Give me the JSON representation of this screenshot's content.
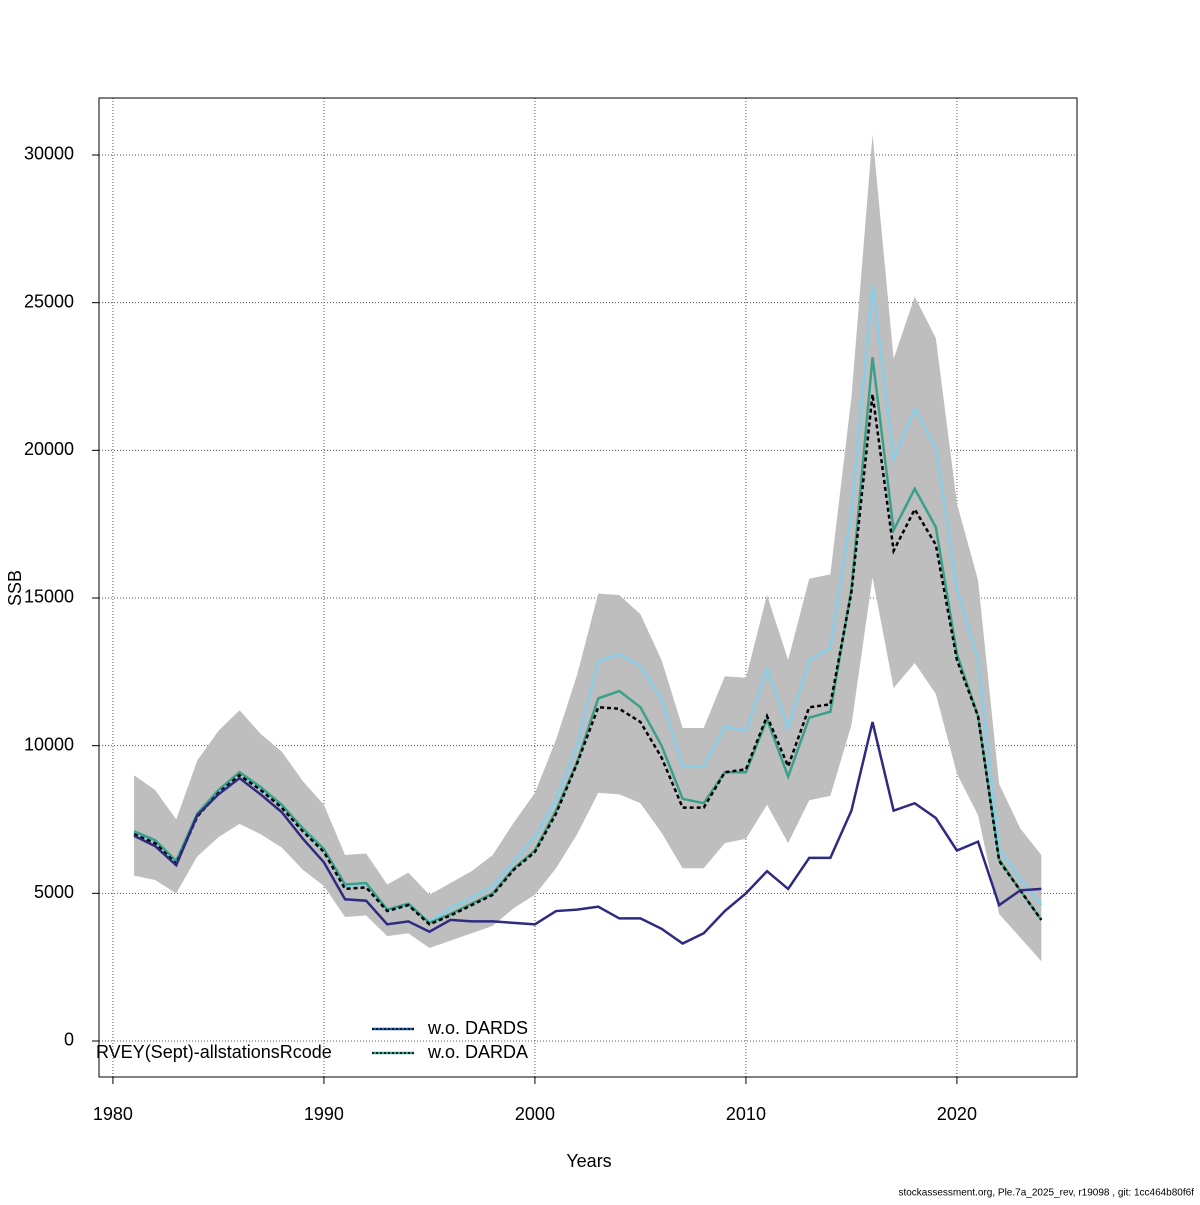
{
  "chart_data": {
    "type": "line",
    "xlabel": "Years",
    "ylabel": "SSB",
    "x": [
      1981,
      1982,
      1983,
      1984,
      1985,
      1986,
      1987,
      1988,
      1989,
      1990,
      1991,
      1992,
      1993,
      1994,
      1995,
      1996,
      1997,
      1998,
      1999,
      2000,
      2001,
      2002,
      2003,
      2004,
      2005,
      2006,
      2007,
      2008,
      2009,
      2010,
      2011,
      2012,
      2013,
      2014,
      2015,
      2016,
      2017,
      2018,
      2019,
      2020,
      2021,
      2022,
      2023,
      2024
    ],
    "band": {
      "color": "#bebebe",
      "upper": [
        9000,
        8500,
        7500,
        9500,
        10500,
        11200,
        10400,
        9800,
        8800,
        8000,
        6300,
        6350,
        5300,
        5700,
        4950,
        5350,
        5750,
        6300,
        7400,
        8400,
        10200,
        12400,
        15150,
        15100,
        14450,
        12900,
        10600,
        10600,
        12350,
        12300,
        15100,
        12900,
        15650,
        15800,
        21800,
        30700,
        23100,
        25200,
        23800,
        18200,
        15600,
        8700,
        7200,
        6300
      ],
      "lower": [
        5600,
        5450,
        5000,
        6250,
        6900,
        7350,
        7000,
        6550,
        5800,
        5250,
        4200,
        4250,
        3550,
        3650,
        3150,
        3400,
        3650,
        3900,
        4500,
        4950,
        5850,
        7000,
        8400,
        8350,
        8050,
        7050,
        5850,
        5850,
        6700,
        6850,
        8000,
        6700,
        8150,
        8300,
        10700,
        15700,
        11950,
        12800,
        11750,
        9050,
        7650,
        4300,
        3500,
        2700
      ]
    },
    "series": [
      {
        "name": "w.o. DARDS",
        "color": "#87ceeb",
        "legend_color": "#1f5aa6",
        "values": [
          7050,
          6750,
          6050,
          7650,
          8450,
          9050,
          8550,
          7950,
          7150,
          6450,
          5250,
          5300,
          4400,
          4600,
          4050,
          4500,
          4850,
          5250,
          6100,
          6900,
          8200,
          10000,
          12850,
          13100,
          12700,
          11600,
          9300,
          9300,
          10650,
          10500,
          12600,
          10600,
          12900,
          13300,
          17900,
          25600,
          19700,
          21400,
          20100,
          15300,
          12900,
          6500,
          5500,
          4600
        ]
      },
      {
        "name": "w.o. DARDA",
        "color": "#3aa08a",
        "legend_color": "#3aa08a",
        "values": [
          7100,
          6800,
          6100,
          7700,
          8500,
          9100,
          8600,
          8000,
          7200,
          6500,
          5300,
          5350,
          4450,
          4650,
          4000,
          4300,
          4650,
          5000,
          5850,
          6450,
          7800,
          9450,
          11600,
          11850,
          11300,
          10000,
          8200,
          8050,
          9100,
          9100,
          10900,
          8950,
          10950,
          11150,
          15300,
          23150,
          17300,
          18700,
          17400,
          13100,
          11000,
          6150,
          5100,
          4100
        ]
      },
      {
        "color": "#000000",
        "dashed": true,
        "values": [
          7000,
          6700,
          6000,
          7600,
          8400,
          9000,
          8500,
          7900,
          7100,
          6400,
          5150,
          5200,
          4400,
          4600,
          3950,
          4250,
          4600,
          4950,
          5800,
          6400,
          7700,
          9400,
          11300,
          11250,
          10800,
          9600,
          7900,
          7900,
          9100,
          9200,
          11000,
          9300,
          11300,
          11400,
          15200,
          21900,
          16600,
          18000,
          16800,
          12900,
          11000,
          6100,
          5100,
          4100
        ]
      },
      {
        "color": "#2e2a80",
        "values": [
          6950,
          6600,
          5950,
          7650,
          8350,
          8900,
          8350,
          7750,
          6850,
          6050,
          4800,
          4750,
          3950,
          4050,
          3700,
          4100,
          4050,
          4050,
          4000,
          3950,
          4400,
          4450,
          4550,
          4150,
          4150,
          3800,
          3300,
          3650,
          4400,
          5000,
          5750,
          5150,
          6200,
          6200,
          7800,
          10800,
          7800,
          8050,
          7550,
          6450,
          6750,
          4600,
          5100,
          5150
        ]
      }
    ],
    "legend_title": "RVEY(Sept)-allstationsRcode",
    "xlim": [
      1979.34,
      2025.69
    ],
    "xticks": [
      1980,
      1990,
      2000,
      2010,
      2020
    ],
    "ylim": [
      -1219,
      31930
    ],
    "yticks": [
      0,
      5000,
      10000,
      15000,
      20000,
      25000,
      30000
    ],
    "grid": true,
    "footnote": "stockassessment.org, Ple.7a_2025_rev, r19098 , git: 1cc464b80f6f"
  }
}
